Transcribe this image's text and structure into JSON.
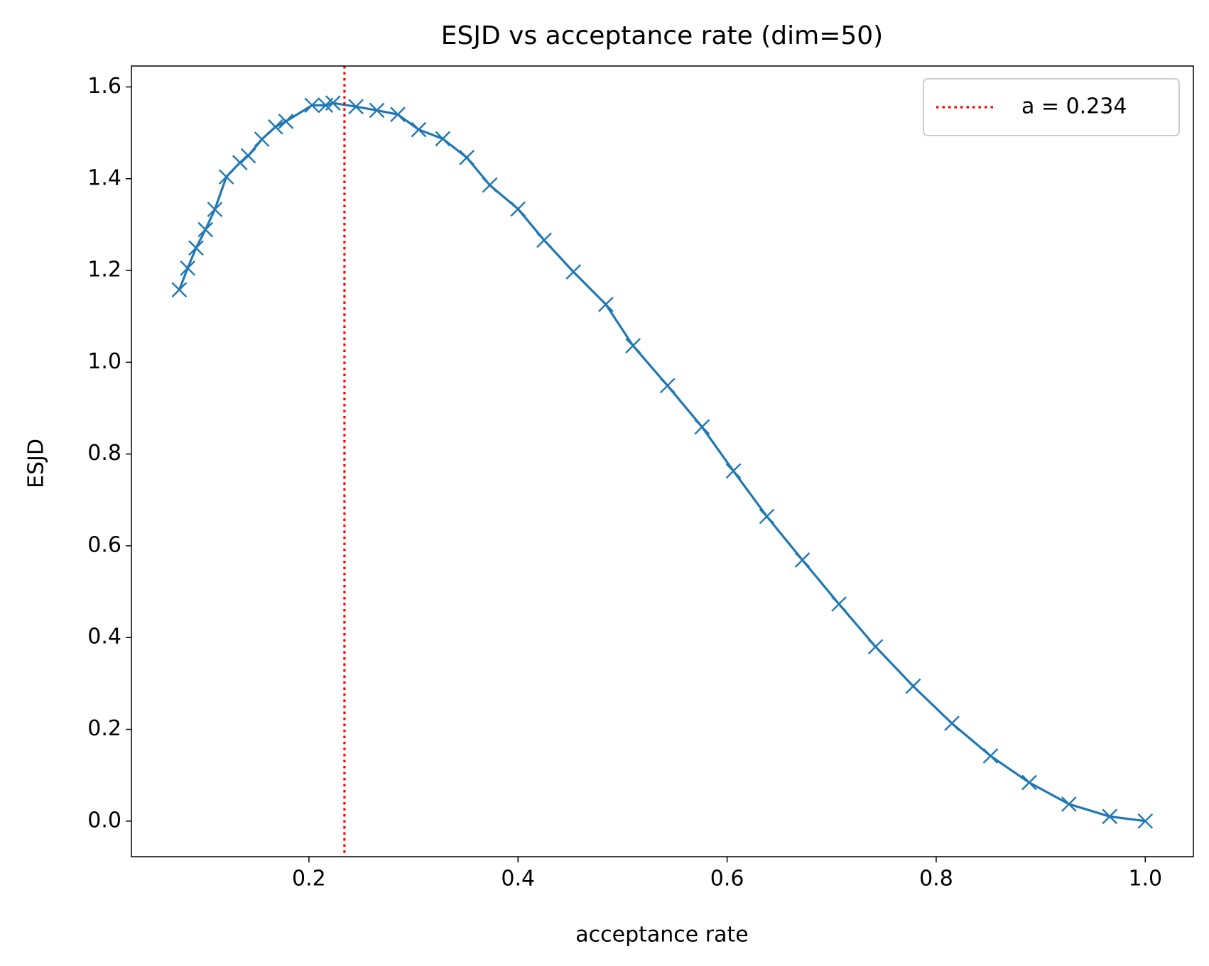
{
  "chart_data": {
    "type": "line",
    "title": "ESJD vs acceptance rate (dim=50)",
    "xlabel": "acceptance rate",
    "ylabel": "ESJD",
    "x": [
      0.076,
      0.084,
      0.092,
      0.101,
      0.11,
      0.121,
      0.134,
      0.142,
      0.155,
      0.168,
      0.178,
      0.203,
      0.216,
      0.223,
      0.245,
      0.265,
      0.285,
      0.305,
      0.328,
      0.351,
      0.373,
      0.4,
      0.425,
      0.453,
      0.484,
      0.51,
      0.543,
      0.576,
      0.606,
      0.638,
      0.672,
      0.707,
      0.742,
      0.778,
      0.815,
      0.852,
      0.889,
      0.927,
      0.966,
      1.0
    ],
    "series": [
      {
        "name": "ESJD",
        "color": "#1f77b4",
        "values": [
          1.158,
          1.205,
          1.249,
          1.289,
          1.333,
          1.404,
          1.435,
          1.45,
          1.486,
          1.513,
          1.525,
          1.56,
          1.56,
          1.565,
          1.557,
          1.549,
          1.54,
          1.507,
          1.487,
          1.446,
          1.386,
          1.334,
          1.266,
          1.197,
          1.126,
          1.036,
          0.949,
          0.859,
          0.763,
          0.664,
          0.569,
          0.473,
          0.38,
          0.294,
          0.213,
          0.142,
          0.084,
          0.037,
          0.01,
          0.0
        ]
      }
    ],
    "vline": {
      "x": 0.234,
      "label": "a = 0.234",
      "color": "#ff0000"
    },
    "legend": "upper right",
    "xlim": [
      0.0302,
      1.046
    ],
    "ylim": [
      -0.0776,
      1.6456
    ],
    "xticks": [
      0.2,
      0.4,
      0.6,
      0.8,
      {
        "value": 1,
        "label": "1.0"
      }
    ],
    "yticks": [
      {
        "value": 0,
        "label": "0.0"
      },
      0.2,
      0.4,
      0.6,
      0.8,
      {
        "value": 1,
        "label": "1.0"
      },
      1.2,
      1.4,
      1.6
    ]
  }
}
